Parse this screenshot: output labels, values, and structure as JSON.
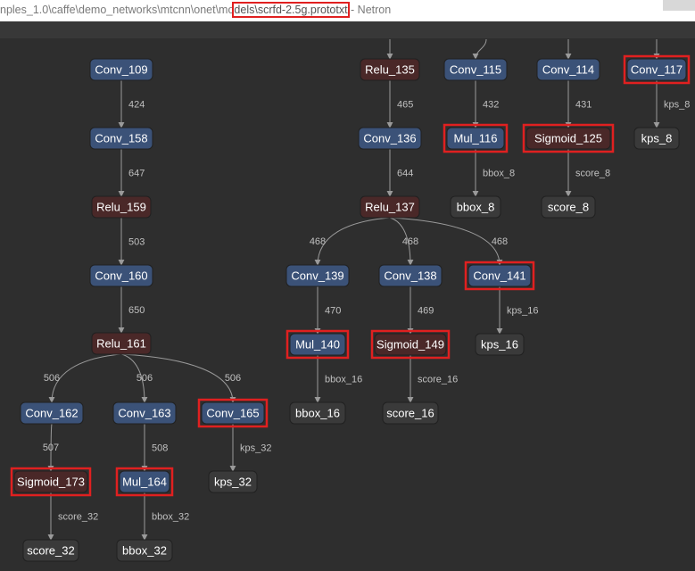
{
  "window": {
    "title_prefix": "nples_1.0\\caffe\\demo_networks\\mtcnn\\onet\\mo",
    "title_highlight": "dels\\scrfd-2.5g.prototxt",
    "title_suffix": " - Netron"
  },
  "colors": {
    "background": "#2e2e2e",
    "conv": "#3b5278",
    "relu": "#4a2828",
    "output": "#3a3a3a",
    "highlight": "#e02020",
    "edge": "#9a9a9a"
  },
  "nodes": [
    {
      "id": "conv109",
      "label": "Conv_109",
      "kind": "conv"
    },
    {
      "id": "conv158",
      "label": "Conv_158",
      "kind": "conv"
    },
    {
      "id": "relu159",
      "label": "Relu_159",
      "kind": "relu"
    },
    {
      "id": "conv160",
      "label": "Conv_160",
      "kind": "conv"
    },
    {
      "id": "relu161",
      "label": "Relu_161",
      "kind": "relu"
    },
    {
      "id": "conv162",
      "label": "Conv_162",
      "kind": "conv"
    },
    {
      "id": "conv163",
      "label": "Conv_163",
      "kind": "conv"
    },
    {
      "id": "conv165",
      "label": "Conv_165",
      "kind": "conv",
      "highlight": true
    },
    {
      "id": "sigmoid173",
      "label": "Sigmoid_173",
      "kind": "relu",
      "highlight": true
    },
    {
      "id": "mul164",
      "label": "Mul_164",
      "kind": "conv",
      "highlight": true
    },
    {
      "id": "kps32",
      "label": "kps_32",
      "kind": "output"
    },
    {
      "id": "score32",
      "label": "score_32",
      "kind": "output"
    },
    {
      "id": "bbox32",
      "label": "bbox_32",
      "kind": "output"
    },
    {
      "id": "relu135",
      "label": "Relu_135",
      "kind": "relu"
    },
    {
      "id": "conv136",
      "label": "Conv_136",
      "kind": "conv"
    },
    {
      "id": "relu137",
      "label": "Relu_137",
      "kind": "relu"
    },
    {
      "id": "conv139",
      "label": "Conv_139",
      "kind": "conv"
    },
    {
      "id": "conv138",
      "label": "Conv_138",
      "kind": "conv"
    },
    {
      "id": "conv141",
      "label": "Conv_141",
      "kind": "conv",
      "highlight": true
    },
    {
      "id": "mul140",
      "label": "Mul_140",
      "kind": "conv",
      "highlight": true
    },
    {
      "id": "sigmoid149",
      "label": "Sigmoid_149",
      "kind": "relu",
      "highlight": true
    },
    {
      "id": "kps16",
      "label": "kps_16",
      "kind": "output"
    },
    {
      "id": "bbox16",
      "label": "bbox_16",
      "kind": "output"
    },
    {
      "id": "score16",
      "label": "score_16",
      "kind": "output"
    },
    {
      "id": "conv115",
      "label": "Conv_115",
      "kind": "conv"
    },
    {
      "id": "mul116",
      "label": "Mul_116",
      "kind": "conv",
      "highlight": true
    },
    {
      "id": "bbox8",
      "label": "bbox_8",
      "kind": "output"
    },
    {
      "id": "conv114",
      "label": "Conv_114",
      "kind": "conv"
    },
    {
      "id": "sigmoid125",
      "label": "Sigmoid_125",
      "kind": "relu",
      "highlight": true
    },
    {
      "id": "score8",
      "label": "score_8",
      "kind": "output"
    },
    {
      "id": "conv117",
      "label": "Conv_117",
      "kind": "conv",
      "highlight": true
    },
    {
      "id": "kps8",
      "label": "kps_8",
      "kind": "output"
    }
  ],
  "edges": [
    {
      "from": "conv109",
      "to": "conv158",
      "label": "424"
    },
    {
      "from": "conv158",
      "to": "relu159",
      "label": "647"
    },
    {
      "from": "relu159",
      "to": "conv160",
      "label": "503"
    },
    {
      "from": "conv160",
      "to": "relu161",
      "label": "650"
    },
    {
      "from": "relu161",
      "to": "conv162",
      "label": "506"
    },
    {
      "from": "relu161",
      "to": "conv163",
      "label": "506"
    },
    {
      "from": "relu161",
      "to": "conv165",
      "label": "506"
    },
    {
      "from": "conv162",
      "to": "sigmoid173",
      "label": "507"
    },
    {
      "from": "conv163",
      "to": "mul164",
      "label": "508"
    },
    {
      "from": "conv165",
      "to": "kps32",
      "label": "kps_32"
    },
    {
      "from": "sigmoid173",
      "to": "score32",
      "label": "score_32"
    },
    {
      "from": "mul164",
      "to": "bbox32",
      "label": "bbox_32"
    },
    {
      "from": "relu135",
      "to": "conv136",
      "label": "465"
    },
    {
      "from": "conv136",
      "to": "relu137",
      "label": "644"
    },
    {
      "from": "relu137",
      "to": "conv139",
      "label": "468"
    },
    {
      "from": "relu137",
      "to": "conv138",
      "label": "468"
    },
    {
      "from": "relu137",
      "to": "conv141",
      "label": "468"
    },
    {
      "from": "conv139",
      "to": "mul140",
      "label": "470"
    },
    {
      "from": "conv138",
      "to": "sigmoid149",
      "label": "469"
    },
    {
      "from": "conv141",
      "to": "kps16",
      "label": "kps_16"
    },
    {
      "from": "mul140",
      "to": "bbox16",
      "label": "bbox_16"
    },
    {
      "from": "sigmoid149",
      "to": "score16",
      "label": "score_16"
    },
    {
      "from": "conv115",
      "to": "mul116",
      "label": "432"
    },
    {
      "from": "mul116",
      "to": "bbox8",
      "label": "bbox_8"
    },
    {
      "from": "conv114",
      "to": "sigmoid125",
      "label": "431"
    },
    {
      "from": "sigmoid125",
      "to": "score8",
      "label": "score_8"
    },
    {
      "from": "conv117",
      "to": "kps8",
      "label": "kps_8"
    }
  ]
}
